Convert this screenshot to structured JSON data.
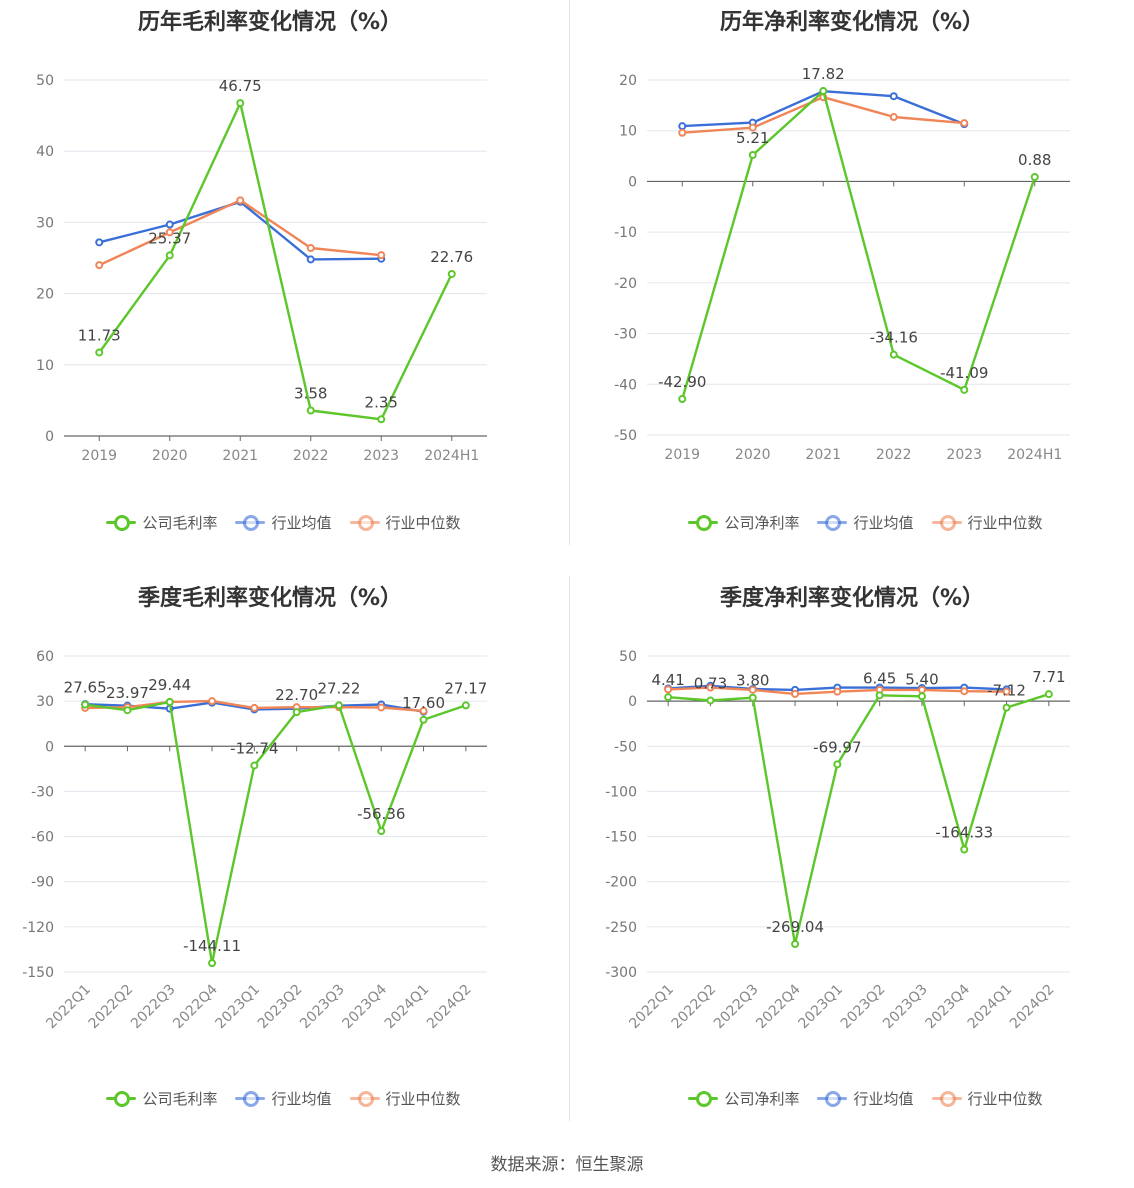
{
  "source": "数据来源：恒生聚源",
  "colors": {
    "company": "#5cc72a",
    "avg": "#3a6fd8",
    "median": "#f08557"
  },
  "chart_data": [
    {
      "id": "annual-gross",
      "type": "line",
      "title": "历年毛利率变化情况（%）",
      "categories": [
        "2019",
        "2020",
        "2021",
        "2022",
        "2023",
        "2024H1"
      ],
      "ylim": [
        0,
        50
      ],
      "yticks": [
        0,
        10,
        20,
        30,
        40,
        50
      ],
      "x_rotated": false,
      "grid": true,
      "legend": "bottom",
      "series": [
        {
          "name": "公司毛利率",
          "key": "company",
          "values": [
            11.73,
            25.37,
            46.75,
            3.58,
            2.35,
            22.76
          ],
          "labels": [
            "11.73",
            "25.37",
            "46.75",
            "3.58",
            "2.35",
            "22.76"
          ]
        },
        {
          "name": "行业均值",
          "key": "avg",
          "values": [
            27.2,
            29.7,
            32.9,
            24.8,
            24.9,
            null
          ]
        },
        {
          "name": "行业中位数",
          "key": "median",
          "values": [
            24.0,
            28.6,
            33.1,
            26.4,
            25.4,
            null
          ]
        }
      ]
    },
    {
      "id": "annual-net",
      "type": "line",
      "title": "历年净利率变化情况（%）",
      "categories": [
        "2019",
        "2020",
        "2021",
        "2022",
        "2023",
        "2024H1"
      ],
      "ylim": [
        -50,
        20
      ],
      "yticks": [
        -50,
        -40,
        -30,
        -20,
        -10,
        0,
        10,
        20
      ],
      "x_rotated": false,
      "grid": true,
      "legend": "bottom",
      "series": [
        {
          "name": "公司净利率",
          "key": "company",
          "values": [
            -42.9,
            5.21,
            17.82,
            -34.16,
            -41.09,
            0.88
          ],
          "labels": [
            "-42.90",
            "5.21",
            "17.82",
            "-34.16",
            "-41.09",
            "0.88"
          ]
        },
        {
          "name": "行业均值",
          "key": "avg",
          "values": [
            10.9,
            11.6,
            17.8,
            16.8,
            11.3,
            null
          ]
        },
        {
          "name": "行业中位数",
          "key": "median",
          "values": [
            9.6,
            10.6,
            16.6,
            12.7,
            11.5,
            null
          ]
        }
      ]
    },
    {
      "id": "quarterly-gross",
      "type": "line",
      "title": "季度毛利率变化情况（%）",
      "categories": [
        "2022Q1",
        "2022Q2",
        "2022Q3",
        "2022Q4",
        "2023Q1",
        "2023Q2",
        "2023Q3",
        "2023Q4",
        "2024Q1",
        "2024Q2"
      ],
      "ylim": [
        -150,
        60
      ],
      "yticks": [
        -150,
        -120,
        -90,
        -60,
        -30,
        0,
        30,
        60
      ],
      "x_rotated": true,
      "grid": true,
      "legend": "bottom",
      "series": [
        {
          "name": "公司毛利率",
          "key": "company",
          "values": [
            27.65,
            23.97,
            29.44,
            -144.11,
            -12.74,
            22.7,
            27.22,
            -56.36,
            17.6,
            27.17
          ],
          "labels": [
            "27.65",
            "23.97",
            "29.44",
            "-144.11",
            "-12.74",
            "22.70",
            "27.22",
            "-56.36",
            "17.60",
            "27.17"
          ]
        },
        {
          "name": "行业均值",
          "key": "avg",
          "values": [
            28.0,
            27.0,
            25.0,
            29.0,
            24.5,
            25.0,
            27.0,
            27.8,
            23.0,
            null
          ]
        },
        {
          "name": "行业中位数",
          "key": "median",
          "values": [
            25.5,
            26.0,
            29.5,
            30.0,
            25.5,
            26.0,
            26.0,
            25.8,
            23.5,
            null
          ]
        }
      ]
    },
    {
      "id": "quarterly-net",
      "type": "line",
      "title": "季度净利率变化情况（%）",
      "categories": [
        "2022Q1",
        "2022Q2",
        "2022Q3",
        "2022Q4",
        "2023Q1",
        "2023Q2",
        "2023Q3",
        "2023Q4",
        "2024Q1",
        "2024Q2"
      ],
      "ylim": [
        -300,
        50
      ],
      "yticks": [
        -300,
        -250,
        -200,
        -150,
        -100,
        -50,
        0,
        50
      ],
      "x_rotated": true,
      "grid": true,
      "legend": "bottom",
      "series": [
        {
          "name": "公司净利率",
          "key": "company",
          "values": [
            4.41,
            0.73,
            3.8,
            -269.04,
            -69.97,
            6.45,
            5.4,
            -164.33,
            -7.12,
            7.71
          ],
          "labels": [
            "4.41",
            "0.73",
            "3.80",
            "-269.04",
            "-69.97",
            "6.45",
            "5.40",
            "-164.33",
            "-7.12",
            "7.71"
          ]
        },
        {
          "name": "行业均值",
          "key": "avg",
          "values": [
            14.0,
            17.0,
            13.5,
            12.5,
            15.0,
            15.0,
            14.5,
            15.0,
            13.0,
            null
          ]
        },
        {
          "name": "行业中位数",
          "key": "median",
          "values": [
            13.0,
            15.0,
            12.5,
            8.0,
            10.5,
            12.5,
            12.5,
            11.0,
            10.5,
            null
          ]
        }
      ]
    }
  ]
}
